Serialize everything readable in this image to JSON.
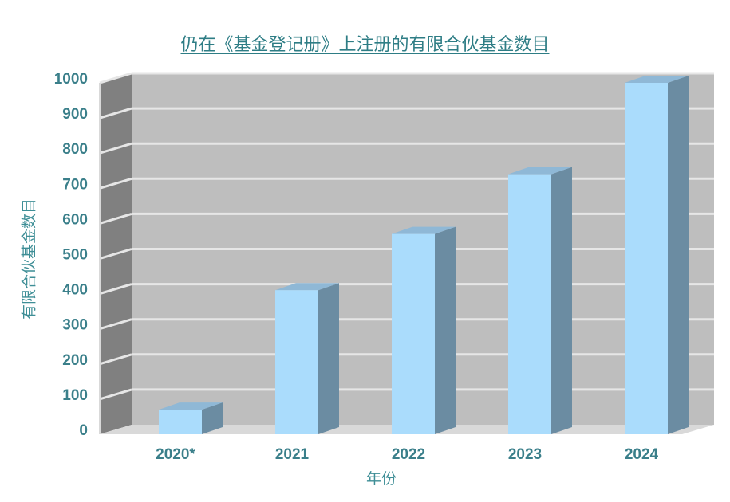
{
  "chart_data": {
    "type": "bar",
    "title": "仍在《基金登记册》上注册的有限合伙基金数目",
    "xlabel": "年份",
    "ylabel": "有限合伙基金数目",
    "categories": [
      "2020*",
      "2021",
      "2022",
      "2023",
      "2024"
    ],
    "values": [
      70,
      410,
      570,
      740,
      1000
    ],
    "ylim": [
      0,
      1000
    ],
    "yticks": [
      0,
      100,
      200,
      300,
      400,
      500,
      600,
      700,
      800,
      900,
      1000
    ],
    "grid": true,
    "legend": "none",
    "colors": {
      "bar_front": "#aadcfc",
      "bar_side": "#6b8ca2",
      "bar_top": "#8fb8d6",
      "plot_back": "#bebebe",
      "plot_side": "#808080",
      "gridline": "#e6e6e6",
      "label": "#3a7f8a"
    }
  }
}
